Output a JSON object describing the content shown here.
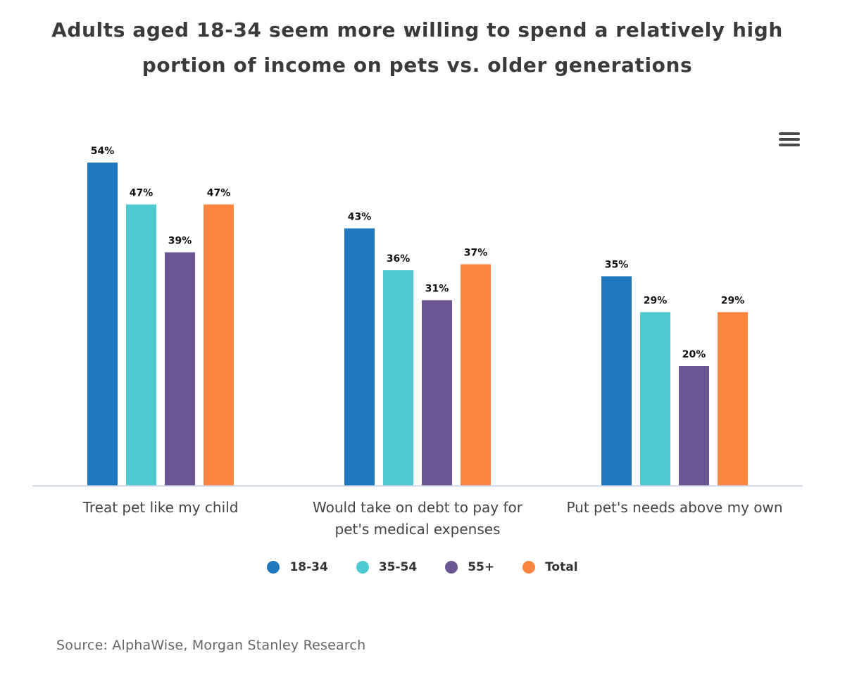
{
  "menu": {
    "icon": "hamburger-menu-icon"
  },
  "source_text": "Source: AlphaWise, Morgan Stanley Research",
  "chart_data": {
    "type": "bar",
    "title": "Adults aged 18-34 seem more willing to spend a relatively high portion of income on pets vs. older generations",
    "xlabel": "",
    "ylabel": "",
    "ylim": [
      0,
      60
    ],
    "grid": false,
    "legend_position": "bottom",
    "categories": [
      [
        "Treat pet like my child"
      ],
      [
        "Would take on debt to pay for",
        "pet's medical expenses"
      ],
      [
        "Put pet's needs above my own"
      ]
    ],
    "series": [
      {
        "name": "18-34",
        "color": "#1f78be",
        "values": [
          54,
          43,
          35
        ]
      },
      {
        "name": "35-54",
        "color": "#4ecbd0",
        "values": [
          47,
          36,
          29
        ]
      },
      {
        "name": "55+",
        "color": "#6b5693",
        "values": [
          39,
          31,
          20
        ]
      },
      {
        "name": "Total",
        "color": "#fb8640",
        "values": [
          47,
          37,
          29
        ]
      }
    ],
    "value_suffix": "%"
  }
}
